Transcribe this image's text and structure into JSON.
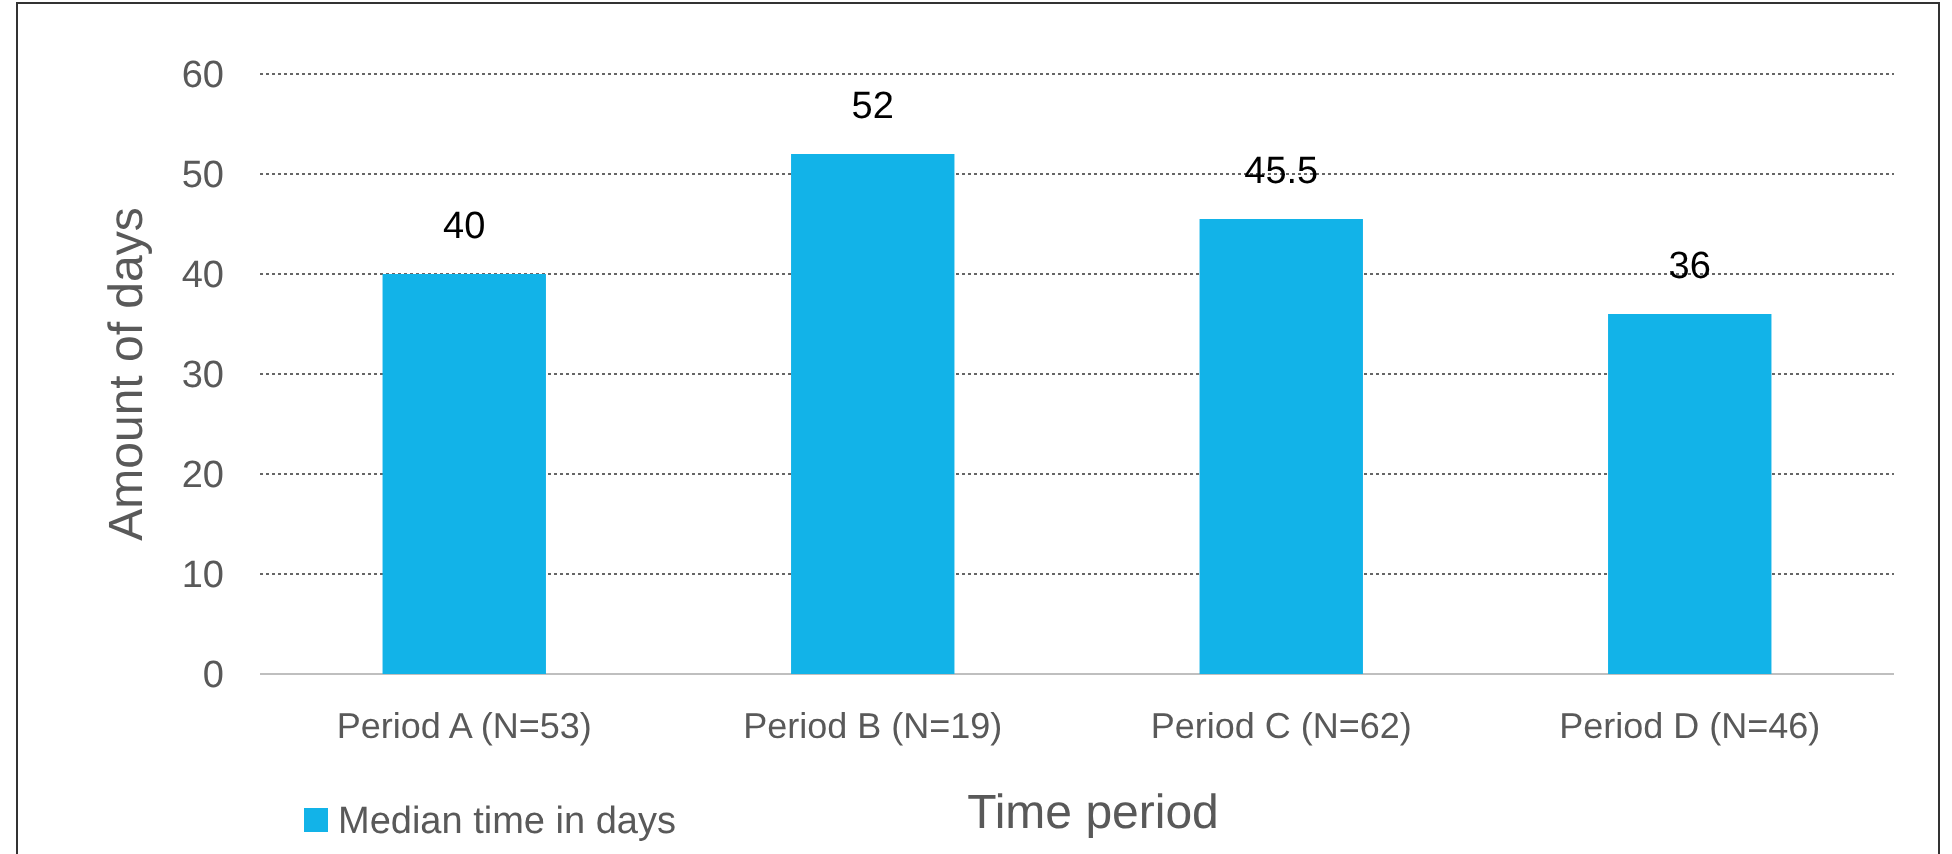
{
  "chart_data": {
    "type": "bar",
    "xlabel": "Time period",
    "ylabel": "Amount of days",
    "categories": [
      "Period A (N=53)",
      "Period B (N=19)",
      "Period C (N=62)",
      "Period D (N=46)"
    ],
    "series": [
      {
        "name": "Median time in days",
        "color": "#12b3e8",
        "values": [
          40,
          52,
          45.5,
          36
        ]
      }
    ],
    "ylim": [
      0,
      60
    ],
    "yticks": [
      0,
      10,
      20,
      30,
      40,
      50,
      60
    ],
    "grid": "y",
    "legend": "bottom left",
    "data_labels": true
  }
}
